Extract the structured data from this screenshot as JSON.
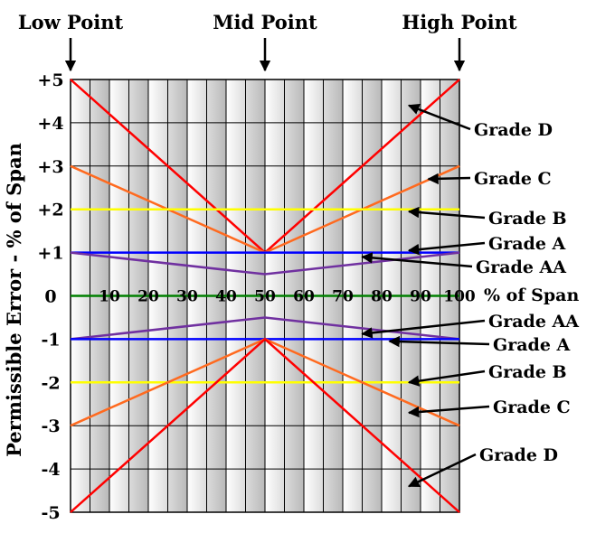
{
  "chart_data": {
    "type": "line",
    "ylabel": "Permissible Error - % of Span",
    "xlabel": "% of Span",
    "x_ticks": [
      "10",
      "20",
      "30",
      "40",
      "50",
      "60",
      "70",
      "80",
      "90",
      "100"
    ],
    "y_ticks": [
      "+5",
      "+4",
      "+3",
      "+2",
      "+1",
      "0",
      "-1",
      "-2",
      "-3",
      "-4",
      "-5"
    ],
    "xlim": [
      0,
      100
    ],
    "ylim": [
      -5,
      5
    ],
    "grid": true,
    "top_labels": [
      "Low Point",
      "Mid Point",
      "High Point"
    ],
    "top_label_x": [
      0,
      50,
      100
    ],
    "series": [
      {
        "name": "Grade D",
        "color": "#ff0000",
        "points": [
          [
            0,
            5
          ],
          [
            50,
            1
          ],
          [
            100,
            5
          ]
        ]
      },
      {
        "name": "Grade C",
        "color": "#ff6a1f",
        "points": [
          [
            0,
            3
          ],
          [
            50,
            1
          ],
          [
            100,
            3
          ]
        ]
      },
      {
        "name": "Grade B",
        "color": "#ffff00",
        "points": [
          [
            0,
            2
          ],
          [
            100,
            2
          ]
        ]
      },
      {
        "name": "Grade A",
        "color": "#0000ff",
        "points": [
          [
            0,
            1
          ],
          [
            100,
            1
          ]
        ]
      },
      {
        "name": "Grade AA",
        "color": "#7030a0",
        "points": [
          [
            0,
            1
          ],
          [
            50,
            0.5
          ],
          [
            100,
            1
          ]
        ]
      },
      {
        "name": "Zero",
        "color": "#008000",
        "points": [
          [
            0,
            0
          ],
          [
            100,
            0
          ]
        ]
      },
      {
        "name": "Grade AA",
        "color": "#7030a0",
        "points": [
          [
            0,
            -1
          ],
          [
            50,
            -0.5
          ],
          [
            100,
            -1
          ]
        ]
      },
      {
        "name": "Grade A",
        "color": "#0000ff",
        "points": [
          [
            0,
            -1
          ],
          [
            100,
            -1
          ]
        ]
      },
      {
        "name": "Grade B",
        "color": "#ffff00",
        "points": [
          [
            0,
            -2
          ],
          [
            100,
            -2
          ]
        ]
      },
      {
        "name": "Grade C",
        "color": "#ff6a1f",
        "points": [
          [
            0,
            -3
          ],
          [
            50,
            -1
          ],
          [
            100,
            -3
          ]
        ]
      },
      {
        "name": "Grade D",
        "color": "#ff0000",
        "points": [
          [
            0,
            -5
          ],
          [
            50,
            -1
          ],
          [
            100,
            -5
          ]
        ]
      }
    ],
    "annotations": [
      {
        "text": "Grade D",
        "target": [
          87,
          4.4
        ]
      },
      {
        "text": "Grade C",
        "target": [
          92,
          2.7
        ]
      },
      {
        "text": "Grade B",
        "target": [
          87,
          1.95
        ]
      },
      {
        "text": "Grade A",
        "target": [
          87,
          1.05
        ]
      },
      {
        "text": "Grade AA",
        "target": [
          75,
          0.9
        ]
      },
      {
        "text": "Grade AA",
        "target": [
          75,
          -0.88
        ]
      },
      {
        "text": "Grade A",
        "target": [
          82,
          -1.05
        ]
      },
      {
        "text": "Grade B",
        "target": [
          87,
          -2.0
        ]
      },
      {
        "text": "Grade C",
        "target": [
          87,
          -2.7
        ]
      },
      {
        "text": "Grade D",
        "target": [
          87,
          -4.4
        ]
      }
    ]
  }
}
